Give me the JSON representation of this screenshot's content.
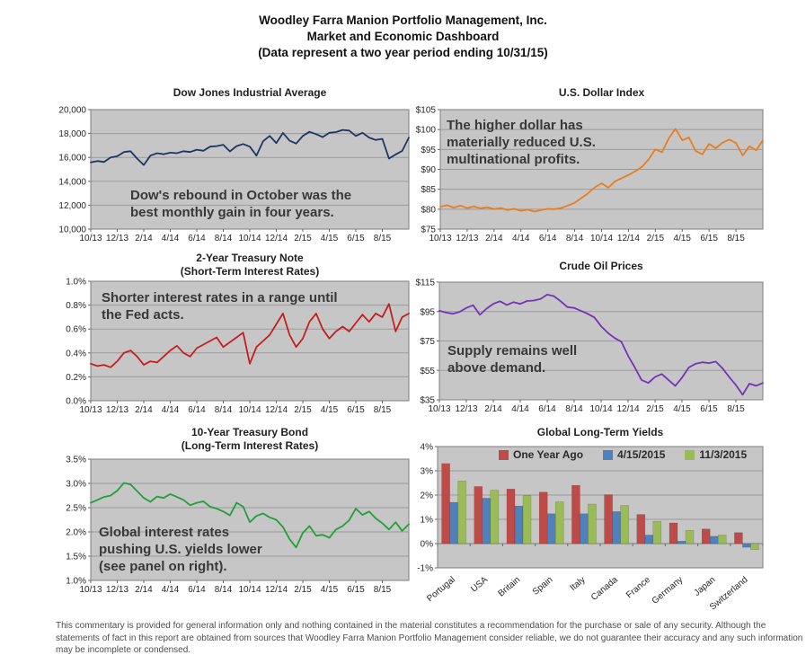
{
  "header": {
    "text": "Woodley Farra Manion Portfolio Management, Inc.\nMarket and Economic Dashboard\n(Data represent a two year period ending 10/31/15)"
  },
  "footer": {
    "text": "This commentary is provided for general information only and nothing contained in the material constitutes a recommendation for the purchase or sale of any security. Although the statements of fact in this report are obtained from sources that Woodley Farra Manion Portfolio Management consider reliable, we do not guarantee their accuracy and any such information may be incomplete or condensed."
  },
  "theme": {
    "plot_bg": "#c6c6c6",
    "grid_color": "#9b9b9b",
    "zero_line_color": "#7f7f7f",
    "plot_border": "#7f7f7f",
    "tick_color": "#666666",
    "tick_text_color": "#262626"
  },
  "chart_data": [
    {
      "id": "dow",
      "type": "line",
      "title": "Dow Jones Industrial Average",
      "annotation": "Dow's rebound in October was the\nbest monthly gain in four years.",
      "ylim": [
        10000,
        20000
      ],
      "y_ticks": [
        10000,
        12000,
        14000,
        16000,
        18000,
        20000
      ],
      "y_tick_labels": [
        "10,000",
        "12,000",
        "14,000",
        "16,000",
        "18,000",
        "20,000"
      ],
      "x_max": 24,
      "x_tick_step": 2,
      "x_tick_labels": [
        "10/13",
        "12/13",
        "2/14",
        "4/14",
        "6/14",
        "8/14",
        "10/14",
        "12/14",
        "2/15",
        "4/15",
        "6/15",
        "8/15"
      ],
      "grid": true,
      "legend_position": "none",
      "series": [
        {
          "name": "DJIA",
          "color": "#1c3564",
          "values": [
            15580,
            15700,
            15620,
            16000,
            16100,
            16450,
            16520,
            15900,
            15370,
            16150,
            16350,
            16270,
            16400,
            16350,
            16520,
            16450,
            16650,
            16560,
            16900,
            16950,
            17060,
            16500,
            16950,
            17120,
            16900,
            16150,
            17350,
            17800,
            17200,
            18050,
            17400,
            17160,
            17800,
            18140,
            17950,
            17700,
            18060,
            18120,
            18300,
            18250,
            17800,
            18060,
            17660,
            17460,
            17560,
            15900,
            16250,
            16550,
            17660
          ]
        }
      ]
    },
    {
      "id": "usd_index",
      "type": "line",
      "title": "U.S. Dollar Index",
      "annotation": "The higher dollar has\nmaterially reduced U.S.\nmultinational profits.",
      "ylim": [
        75,
        105
      ],
      "y_ticks": [
        75,
        80,
        85,
        90,
        95,
        100,
        105
      ],
      "y_tick_labels": [
        "$75",
        "$80",
        "$85",
        "$90",
        "$95",
        "$100",
        "$105"
      ],
      "x_max": 24,
      "x_tick_step": 2,
      "x_tick_labels": [
        "10/13",
        "12/13",
        "2/14",
        "4/14",
        "6/14",
        "8/14",
        "10/14",
        "12/14",
        "2/15",
        "4/15",
        "6/15",
        "8/15"
      ],
      "grid": true,
      "legend_position": "none",
      "series": [
        {
          "name": "U.S. Dollar Index",
          "color": "#e87d1e",
          "values": [
            80.6,
            81.0,
            80.4,
            80.9,
            80.3,
            80.7,
            80.2,
            80.5,
            80.0,
            80.3,
            79.8,
            80.1,
            79.6,
            79.9,
            79.4,
            79.8,
            80.1,
            80.0,
            80.3,
            80.9,
            81.6,
            82.8,
            84.0,
            85.5,
            86.5,
            85.4,
            87.0,
            87.8,
            88.6,
            89.5,
            90.6,
            92.5,
            95.0,
            94.3,
            97.8,
            100.2,
            97.3,
            98.0,
            94.6,
            93.8,
            96.4,
            95.3,
            96.7,
            97.5,
            96.6,
            93.5,
            95.8,
            94.8,
            97.3
          ]
        }
      ]
    },
    {
      "id": "treasury_2yr",
      "type": "line",
      "title": "2-Year Treasury Note\n(Short-Term Interest Rates)",
      "annotation": "Shorter interest rates in a range until\nthe Fed acts.",
      "ylim": [
        0,
        1
      ],
      "y_ticks": [
        0,
        0.2,
        0.4,
        0.6,
        0.8,
        1.0
      ],
      "y_tick_labels": [
        "0.0%",
        "0.2%",
        "0.4%",
        "0.6%",
        "0.8%",
        "1.0%"
      ],
      "x_max": 24,
      "x_tick_step": 2,
      "x_tick_labels": [
        "10/13",
        "12/13",
        "2/14",
        "4/14",
        "6/14",
        "8/14",
        "10/14",
        "12/14",
        "2/15",
        "4/15",
        "6/15",
        "8/15"
      ],
      "grid": true,
      "legend_position": "none",
      "series": [
        {
          "name": "2-Year Treasury Yield",
          "color": "#c51e1e",
          "values": [
            0.31,
            0.29,
            0.3,
            0.28,
            0.33,
            0.4,
            0.42,
            0.37,
            0.3,
            0.33,
            0.32,
            0.37,
            0.42,
            0.46,
            0.4,
            0.37,
            0.44,
            0.47,
            0.5,
            0.53,
            0.45,
            0.49,
            0.53,
            0.57,
            0.31,
            0.45,
            0.5,
            0.55,
            0.64,
            0.73,
            0.55,
            0.45,
            0.52,
            0.66,
            0.73,
            0.6,
            0.52,
            0.58,
            0.62,
            0.58,
            0.65,
            0.72,
            0.66,
            0.73,
            0.7,
            0.81,
            0.58,
            0.7,
            0.73
          ]
        }
      ]
    },
    {
      "id": "crude_oil",
      "type": "line",
      "title": "Crude Oil Prices",
      "annotation": "Supply remains well\nabove demand.",
      "ylim": [
        35,
        115
      ],
      "y_ticks": [
        35,
        55,
        75,
        95,
        115
      ],
      "y_tick_labels": [
        "$35",
        "$55",
        "$75",
        "$95",
        "$115"
      ],
      "x_max": 24,
      "x_tick_step": 2,
      "x_tick_labels": [
        "10/13",
        "12/13",
        "2/14",
        "4/14",
        "6/14",
        "8/14",
        "10/14",
        "12/14",
        "2/15",
        "4/15",
        "6/15",
        "8/15"
      ],
      "grid": true,
      "legend_position": "none",
      "series": [
        {
          "name": "Crude Oil Price",
          "color": "#7433b8",
          "values": [
            95.5,
            94.3,
            93.5,
            94.8,
            97.5,
            99.3,
            92.8,
            97.0,
            100.3,
            102.0,
            99.5,
            101.4,
            100.2,
            102.2,
            102.5,
            103.5,
            106.5,
            105.5,
            102.0,
            98.0,
            97.5,
            95.5,
            93.5,
            91.0,
            85.0,
            80.5,
            77.0,
            74.5,
            65.0,
            57.0,
            48.5,
            46.5,
            50.5,
            52.5,
            48.5,
            44.5,
            50.0,
            57.0,
            59.5,
            60.5,
            60.0,
            61.0,
            56.5,
            50.5,
            45.0,
            38.5,
            46.0,
            44.5,
            46.5
          ]
        }
      ]
    },
    {
      "id": "treasury_10yr",
      "type": "line",
      "title": "10-Year Treasury Bond\n(Long-Term Interest Rates)",
      "annotation": "Global interest rates\npushing U.S. yields lower\n(see panel on right).",
      "ylim": [
        1.0,
        3.5
      ],
      "y_ticks": [
        1.0,
        1.5,
        2.0,
        2.5,
        3.0,
        3.5
      ],
      "y_tick_labels": [
        "1.0%",
        "1.5%",
        "2.0%",
        "2.5%",
        "3.0%",
        "3.5%"
      ],
      "x_max": 24,
      "x_tick_step": 2,
      "x_tick_labels": [
        "10/13",
        "12/13",
        "2/14",
        "4/14",
        "6/14",
        "8/14",
        "10/14",
        "12/14",
        "2/15",
        "4/15",
        "6/15",
        "8/15"
      ],
      "grid": true,
      "legend_position": "none",
      "series": [
        {
          "name": "10-Year Treasury Yield",
          "color": "#21a038",
          "values": [
            2.6,
            2.66,
            2.72,
            2.75,
            2.85,
            3.01,
            2.98,
            2.84,
            2.7,
            2.62,
            2.73,
            2.7,
            2.78,
            2.72,
            2.66,
            2.55,
            2.6,
            2.63,
            2.52,
            2.48,
            2.42,
            2.34,
            2.6,
            2.52,
            2.2,
            2.33,
            2.38,
            2.3,
            2.25,
            2.1,
            1.85,
            1.68,
            1.98,
            2.12,
            1.92,
            1.94,
            1.88,
            2.05,
            2.12,
            2.24,
            2.48,
            2.35,
            2.42,
            2.28,
            2.18,
            2.05,
            2.2,
            2.02,
            2.16
          ]
        }
      ]
    },
    {
      "id": "global_yields",
      "type": "bar",
      "title": "Global Long-Term Yields",
      "ylim": [
        -1,
        4
      ],
      "y_ticks": [
        -1,
        0,
        1,
        2,
        3,
        4
      ],
      "y_tick_labels": [
        "-1%",
        "0%",
        "1%",
        "2%",
        "3%",
        "4%"
      ],
      "categories": [
        "Portugal",
        "USA",
        "Britain",
        "Spain",
        "Italy",
        "Canada",
        "France",
        "Germany",
        "Japan",
        "Switzerland"
      ],
      "grid": true,
      "legend_position": "top",
      "series": [
        {
          "name": "One Year Ago",
          "color": "#be4b48",
          "values": [
            3.3,
            2.35,
            2.25,
            2.12,
            2.4,
            2.02,
            1.2,
            0.85,
            0.6,
            0.45
          ]
        },
        {
          "name": "4/15/2015",
          "color": "#4f81bd",
          "values": [
            1.7,
            1.87,
            1.55,
            1.23,
            1.23,
            1.32,
            0.35,
            0.1,
            0.3,
            -0.15
          ]
        },
        {
          "name": "11/3/2015",
          "color": "#9bbb59",
          "values": [
            2.58,
            2.2,
            1.98,
            1.72,
            1.63,
            1.57,
            0.92,
            0.55,
            0.35,
            -0.25
          ]
        }
      ]
    }
  ]
}
